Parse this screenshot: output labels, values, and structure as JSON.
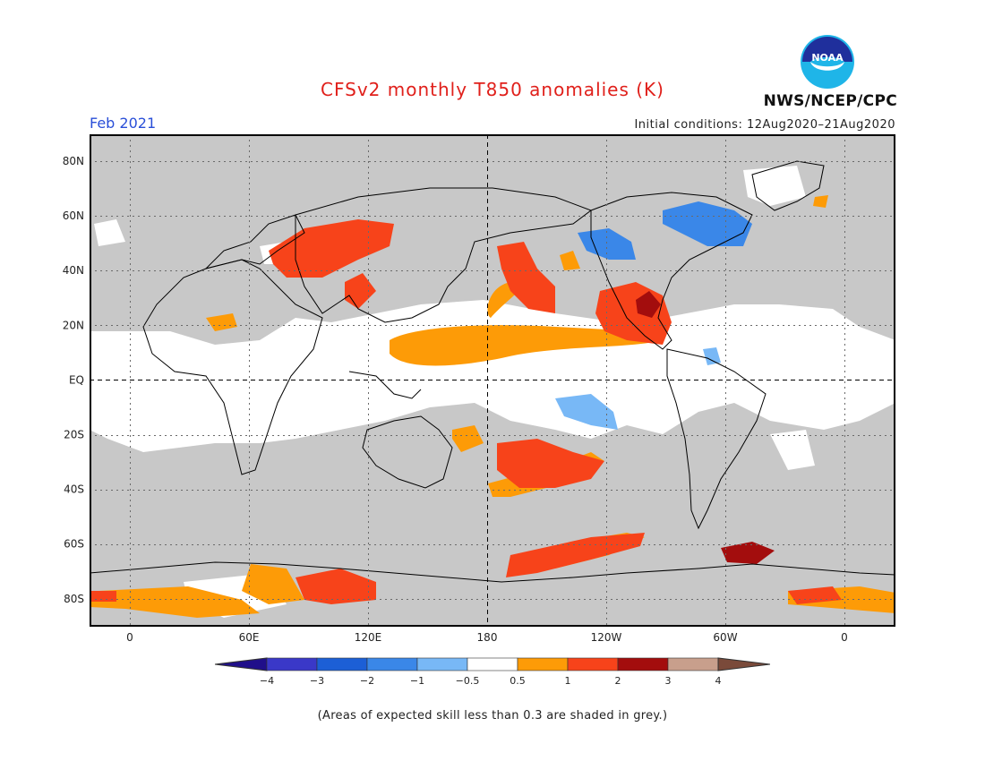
{
  "header": {
    "title": "CFSv2 monthly T850 anomalies (K)",
    "month": "Feb 2021",
    "agency": "NWS/NCEP/CPC",
    "initial_conditions": "Initial conditions: 12Aug2020–21Aug2020"
  },
  "logo": {
    "text": "NOAA",
    "icon": "noaa-logo-icon"
  },
  "map": {
    "lat_labels": [
      "80N",
      "60N",
      "40N",
      "20N",
      "EQ",
      "20S",
      "40S",
      "60S",
      "80S"
    ],
    "lon_labels": [
      "0",
      "60E",
      "120E",
      "180",
      "120W",
      "60W",
      "0"
    ],
    "colors": {
      "land_grey": "#c8c8c8",
      "ocean_white": "#ffffff",
      "coast": "#000000"
    }
  },
  "colorbar": {
    "labels": [
      "−4",
      "−3",
      "−2",
      "−1",
      "−0.5",
      "0.5",
      "1",
      "2",
      "3",
      "4"
    ],
    "colors": [
      "#200f8a",
      "#3a38c8",
      "#1c5fd6",
      "#3a87e8",
      "#78b8f6",
      "#ffffff",
      "#fd9b07",
      "#f7431a",
      "#a30d0d",
      "#c89f8c",
      "#7a4a3a"
    ]
  },
  "caption": "(Areas of expected skill less than 0.3 are shaded in grey.)"
}
